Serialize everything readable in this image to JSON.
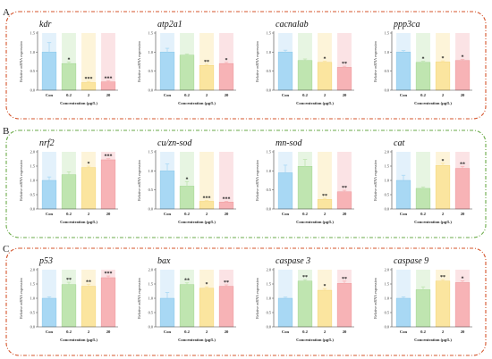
{
  "panels": [
    {
      "label": "A",
      "frame_color": "#d4542b",
      "charts": [
        {
          "type": "bar",
          "title": "kdr",
          "ylabel": "Relative mRNA expression",
          "xlabel": "Concentration (μg/L)",
          "categories": [
            "Con",
            "0.2",
            "2",
            "20"
          ],
          "values": [
            1.0,
            0.7,
            0.2,
            0.22
          ],
          "errors": [
            0.25,
            0.04,
            0.03,
            0.03
          ],
          "stars": [
            "",
            "*",
            "***",
            "***"
          ],
          "ylim": [
            0,
            1.5
          ],
          "yticks": [
            "0.0",
            "0.5",
            "1.0",
            "1.5"
          ]
        },
        {
          "type": "bar",
          "title": "atp2a1",
          "ylabel": "Relative mRNA expression",
          "xlabel": "Concentration (μg/L)",
          "categories": [
            "Con",
            "0.2",
            "2",
            "20"
          ],
          "values": [
            1.0,
            0.92,
            0.65,
            0.7
          ],
          "errors": [
            0.1,
            0.03,
            0.03,
            0.03
          ],
          "stars": [
            "",
            "",
            "**",
            "*"
          ],
          "ylim": [
            0,
            1.5
          ],
          "yticks": [
            "0.0",
            "0.5",
            "1.0",
            "1.5"
          ]
        },
        {
          "type": "bar",
          "title": "cacnalab",
          "ylabel": "Relative mRNA expression",
          "xlabel": "Concentration (μg/L)",
          "categories": [
            "Con",
            "0.2",
            "2",
            "20"
          ],
          "values": [
            1.0,
            0.78,
            0.73,
            0.6
          ],
          "errors": [
            0.05,
            0.04,
            0.03,
            0.03
          ],
          "stars": [
            "",
            "",
            "*",
            "**"
          ],
          "ylim": [
            0,
            1.5
          ],
          "yticks": [
            "0.0",
            "0.5",
            "1.0",
            "1.5"
          ]
        },
        {
          "type": "bar",
          "title": "ppp3ca",
          "ylabel": "Relative mRNA expression",
          "xlabel": "Concentration (μg/L)",
          "categories": [
            "Con",
            "0.2",
            "2",
            "20"
          ],
          "values": [
            1.0,
            0.73,
            0.74,
            0.78
          ],
          "errors": [
            0.04,
            0.03,
            0.03,
            0.03
          ],
          "stars": [
            "",
            "*",
            "*",
            "*"
          ],
          "ylim": [
            0,
            1.5
          ],
          "yticks": [
            "0.0",
            "0.5",
            "1.0",
            "1.5"
          ]
        }
      ]
    },
    {
      "label": "B",
      "frame_color": "#6aaa48",
      "charts": [
        {
          "type": "bar",
          "title": "nrf2",
          "ylabel": "Relative mRNA expression",
          "xlabel": "Concentration (μg/L)",
          "categories": [
            "Con",
            "0.2",
            "2",
            "20"
          ],
          "values": [
            1.0,
            1.2,
            1.45,
            1.72
          ],
          "errors": [
            0.12,
            0.1,
            0.05,
            0.04
          ],
          "stars": [
            "",
            "",
            "*",
            "***"
          ],
          "ylim": [
            0,
            2.0
          ],
          "yticks": [
            "0.0",
            "0.5",
            "1.0",
            "1.5",
            "2.0"
          ]
        },
        {
          "type": "bar",
          "title": "cu/zn-sod",
          "ylabel": "Relative mRNA expression",
          "xlabel": "Concentration (μg/L)",
          "categories": [
            "Con",
            "0.2",
            "2",
            "20"
          ],
          "values": [
            1.0,
            0.6,
            0.2,
            0.18
          ],
          "errors": [
            0.18,
            0.12,
            0.02,
            0.02
          ],
          "stars": [
            "",
            "*",
            "***",
            "***"
          ],
          "ylim": [
            0,
            1.5
          ],
          "yticks": [
            "0.0",
            "0.5",
            "1.0",
            "1.5"
          ]
        },
        {
          "type": "bar",
          "title": "mn-sod",
          "ylabel": "Relative mRNA expression",
          "xlabel": "Concentration (μg/L)",
          "categories": [
            "Con",
            "0.2",
            "2",
            "20"
          ],
          "values": [
            0.95,
            1.12,
            0.25,
            0.45
          ],
          "errors": [
            0.2,
            0.18,
            0.03,
            0.04
          ],
          "stars": [
            "",
            "",
            "**",
            "**"
          ],
          "ylim": [
            0,
            1.5
          ],
          "yticks": [
            "0.0",
            "0.5",
            "1.0",
            "1.5"
          ]
        },
        {
          "type": "bar",
          "title": "cat",
          "ylabel": "Relative mRNA expression",
          "xlabel": "Concentration (μg/L)",
          "categories": [
            "Con",
            "0.2",
            "2",
            "20"
          ],
          "values": [
            1.0,
            0.72,
            1.52,
            1.42
          ],
          "errors": [
            0.18,
            0.05,
            0.08,
            0.07
          ],
          "stars": [
            "",
            "",
            "*",
            "**"
          ],
          "ylim": [
            0,
            2.0
          ],
          "yticks": [
            "0.0",
            "0.5",
            "1.0",
            "1.5",
            "2.0"
          ]
        }
      ]
    },
    {
      "label": "C",
      "frame_color": "#d4542b",
      "charts": [
        {
          "type": "bar",
          "title": "p53",
          "ylabel": "Relative mRNA expression",
          "xlabel": "Concentration (μg/L)",
          "categories": [
            "Con",
            "0.2",
            "2",
            "20"
          ],
          "values": [
            1.0,
            1.48,
            1.42,
            1.72
          ],
          "errors": [
            0.05,
            0.08,
            0.07,
            0.06
          ],
          "stars": [
            "",
            "**",
            "**",
            "***"
          ],
          "ylim": [
            0,
            2.0
          ],
          "yticks": [
            "0.0",
            "0.5",
            "1.0",
            "1.5",
            "2.0"
          ]
        },
        {
          "type": "bar",
          "title": "bax",
          "ylabel": "Relative mRNA expression",
          "xlabel": "Concentration (μg/L)",
          "categories": [
            "Con",
            "0.2",
            "2",
            "20"
          ],
          "values": [
            1.0,
            1.48,
            1.35,
            1.42
          ],
          "errors": [
            0.2,
            0.06,
            0.05,
            0.05
          ],
          "stars": [
            "",
            "**",
            "*",
            "**"
          ],
          "ylim": [
            0,
            2.0
          ],
          "yticks": [
            "0.0",
            "0.5",
            "1.0",
            "1.5",
            "2.0"
          ]
        },
        {
          "type": "bar",
          "title": "caspase 3",
          "ylabel": "Relative mRNA expression",
          "xlabel": "Concentration (μg/L)",
          "categories": [
            "Con",
            "0.2",
            "2",
            "20"
          ],
          "values": [
            1.0,
            1.6,
            1.28,
            1.52
          ],
          "errors": [
            0.04,
            0.05,
            0.06,
            0.08
          ],
          "stars": [
            "",
            "**",
            "*",
            "**"
          ],
          "ylim": [
            0,
            2.0
          ],
          "yticks": [
            "0.0",
            "0.5",
            "1.0",
            "1.5",
            "2.0"
          ]
        },
        {
          "type": "bar",
          "title": "caspase 9",
          "ylabel": "Relative mRNA expression",
          "xlabel": "Concentration (μg/L)",
          "categories": [
            "Con",
            "0.2",
            "2",
            "20"
          ],
          "values": [
            1.0,
            1.3,
            1.6,
            1.55
          ],
          "errors": [
            0.05,
            0.1,
            0.05,
            0.06
          ],
          "stars": [
            "",
            "",
            "**",
            "*"
          ],
          "ylim": [
            0,
            2.0
          ],
          "yticks": [
            "0.0",
            "0.5",
            "1.0",
            "1.5",
            "2.0"
          ]
        }
      ]
    }
  ],
  "bar_colors": [
    "#a8d8f4",
    "#bfe5b0",
    "#fbe59f",
    "#f7b3b6"
  ],
  "bar_edge_colors": [
    "#7bbfe6",
    "#98d285",
    "#f3d06a",
    "#ec8d92"
  ],
  "shade_colors": [
    "#e3f1fb",
    "#e7f5e2",
    "#fdf4d9",
    "#fbe3e5"
  ],
  "chart_data": [
    {
      "type": "bar",
      "title": "kdr",
      "categories": [
        "Con",
        "0.2",
        "2",
        "20"
      ],
      "values": [
        1.0,
        0.7,
        0.2,
        0.22
      ],
      "ylabel": "Relative mRNA expression",
      "xlabel": "Concentration (μg/L)",
      "ylim": [
        0,
        1.5
      ]
    },
    {
      "type": "bar",
      "title": "atp2a1",
      "categories": [
        "Con",
        "0.2",
        "2",
        "20"
      ],
      "values": [
        1.0,
        0.92,
        0.65,
        0.7
      ],
      "ylabel": "Relative mRNA expression",
      "xlabel": "Concentration (μg/L)",
      "ylim": [
        0,
        1.5
      ]
    },
    {
      "type": "bar",
      "title": "cacnalab",
      "categories": [
        "Con",
        "0.2",
        "2",
        "20"
      ],
      "values": [
        1.0,
        0.78,
        0.73,
        0.6
      ],
      "ylabel": "Relative mRNA expression",
      "xlabel": "Concentration (μg/L)",
      "ylim": [
        0,
        1.5
      ]
    },
    {
      "type": "bar",
      "title": "ppp3ca",
      "categories": [
        "Con",
        "0.2",
        "2",
        "20"
      ],
      "values": [
        1.0,
        0.73,
        0.74,
        0.78
      ],
      "ylabel": "Relative mRNA expression",
      "xlabel": "Concentration (μg/L)",
      "ylim": [
        0,
        1.5
      ]
    },
    {
      "type": "bar",
      "title": "nrf2",
      "categories": [
        "Con",
        "0.2",
        "2",
        "20"
      ],
      "values": [
        1.0,
        1.2,
        1.45,
        1.72
      ],
      "ylabel": "Relative mRNA expression",
      "xlabel": "Concentration (μg/L)",
      "ylim": [
        0,
        2.0
      ]
    },
    {
      "type": "bar",
      "title": "cu/zn-sod",
      "categories": [
        "Con",
        "0.2",
        "2",
        "20"
      ],
      "values": [
        1.0,
        0.6,
        0.2,
        0.18
      ],
      "ylabel": "Relative mRNA expression",
      "xlabel": "Concentration (μg/L)",
      "ylim": [
        0,
        1.5
      ]
    },
    {
      "type": "bar",
      "title": "mn-sod",
      "categories": [
        "Con",
        "0.2",
        "2",
        "20"
      ],
      "values": [
        0.95,
        1.12,
        0.25,
        0.45
      ],
      "ylabel": "Relative mRNA expression",
      "xlabel": "Concentration (μg/L)",
      "ylim": [
        0,
        1.5
      ]
    },
    {
      "type": "bar",
      "title": "cat",
      "categories": [
        "Con",
        "0.2",
        "2",
        "20"
      ],
      "values": [
        1.0,
        0.72,
        1.52,
        1.42
      ],
      "ylabel": "Relative mRNA expression",
      "xlabel": "Concentration (μg/L)",
      "ylim": [
        0,
        2.0
      ]
    },
    {
      "type": "bar",
      "title": "p53",
      "categories": [
        "Con",
        "0.2",
        "2",
        "20"
      ],
      "values": [
        1.0,
        1.48,
        1.42,
        1.72
      ],
      "ylabel": "Relative mRNA expression",
      "xlabel": "Concentration (μg/L)",
      "ylim": [
        0,
        2.0
      ]
    },
    {
      "type": "bar",
      "title": "bax",
      "categories": [
        "Con",
        "0.2",
        "2",
        "20"
      ],
      "values": [
        1.0,
        1.48,
        1.35,
        1.42
      ],
      "ylabel": "Relative mRNA expression",
      "xlabel": "Concentration (μg/L)",
      "ylim": [
        0,
        2.0
      ]
    },
    {
      "type": "bar",
      "title": "caspase 3",
      "categories": [
        "Con",
        "0.2",
        "2",
        "20"
      ],
      "values": [
        1.0,
        1.6,
        1.28,
        1.52
      ],
      "ylabel": "Relative mRNA expression",
      "xlabel": "Concentration (μg/L)",
      "ylim": [
        0,
        2.0
      ]
    },
    {
      "type": "bar",
      "title": "caspase 9",
      "categories": [
        "Con",
        "0.2",
        "2",
        "20"
      ],
      "values": [
        1.0,
        1.3,
        1.6,
        1.55
      ],
      "ylabel": "Relative mRNA expression",
      "xlabel": "Concentration (μg/L)",
      "ylim": [
        0,
        2.0
      ]
    }
  ]
}
